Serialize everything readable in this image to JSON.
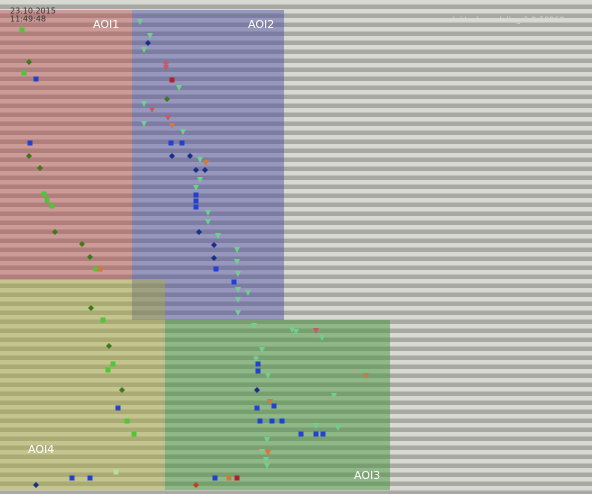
{
  "header": {
    "date": "23.10.2015",
    "time": "11:49:48",
    "model": "model task modeling 1.0:10969"
  },
  "aois": [
    {
      "label": "AOI1"
    },
    {
      "label": "AOI2"
    },
    {
      "label": "AOI3"
    },
    {
      "label": "AOI4"
    }
  ]
}
